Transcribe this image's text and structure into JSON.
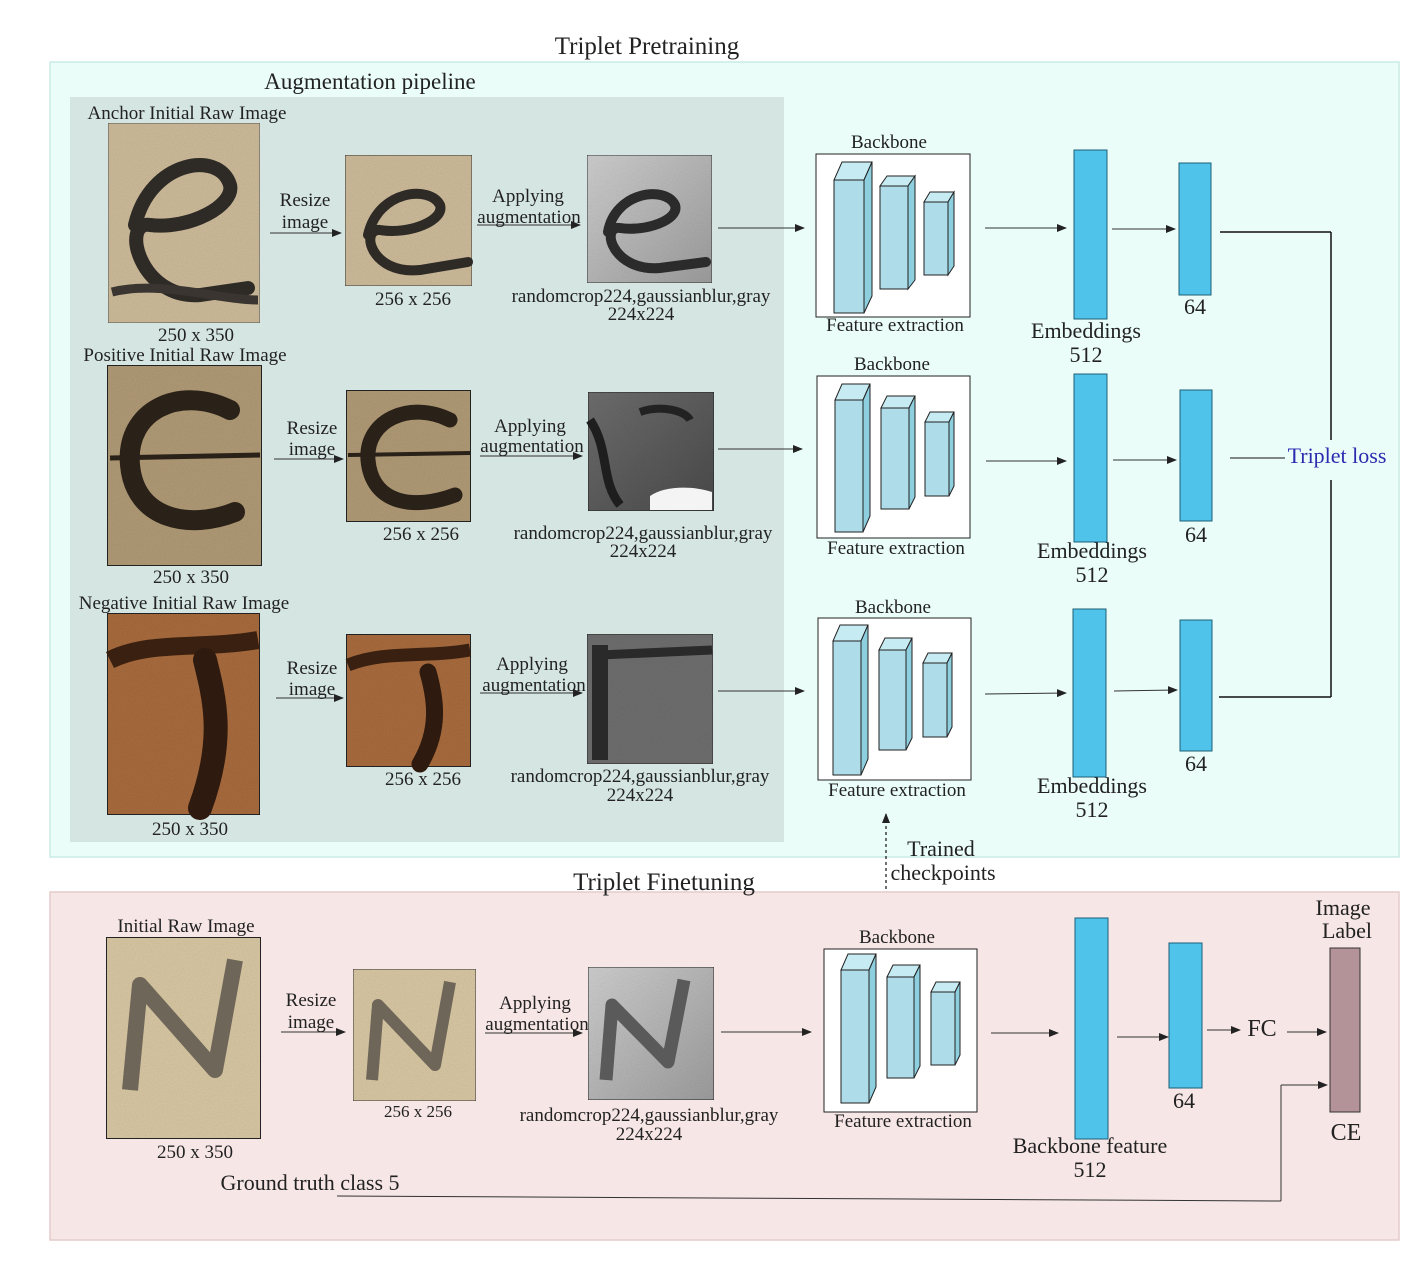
{
  "pretraining": {
    "title": "Triplet Pretraining",
    "pipeline_title": "Augmentation pipeline",
    "rows": [
      {
        "raw_label": "Anchor Initial Raw Image",
        "raw_size": "250 x 350",
        "resize_label_1": "Resize",
        "resize_label_2": "image",
        "resized_size": "256 x 256",
        "augment_label_1": "Applying",
        "augment_label_2": "augmentation",
        "augment_ops": "randomcrop224,gaussianblur,gray",
        "augment_size": "224x224",
        "backbone_title": "Backbone",
        "backbone_caption": "Feature extraction",
        "embedding_label": "Embeddings",
        "embedding_dim": "512",
        "output_dim": "64"
      },
      {
        "raw_label": "Positive Initial Raw Image",
        "raw_size": "250 x 350",
        "resize_label_1": "Resize",
        "resize_label_2": "image",
        "resized_size": "256 x 256",
        "augment_label_1": "Applying",
        "augment_label_2": "augmentation",
        "augment_ops": "randomcrop224,gaussianblur,gray",
        "augment_size": "224x224",
        "backbone_title": "Backbone",
        "backbone_caption": "Feature extraction",
        "embedding_label": "Embeddings",
        "embedding_dim": "512",
        "output_dim": "64"
      },
      {
        "raw_label": "Negative Initial Raw Image",
        "raw_size": "250 x 350",
        "resize_label_1": "Resize",
        "resize_label_2": "image",
        "resized_size": "256 x 256",
        "augment_label_1": "Applying",
        "augment_label_2": "augmentation",
        "augment_ops": "randomcrop224,gaussianblur,gray",
        "augment_size": "224x224",
        "backbone_title": "Backbone",
        "backbone_caption": "Feature extraction",
        "embedding_label": "Embeddings",
        "embedding_dim": "512",
        "output_dim": "64"
      }
    ],
    "loss_label": "Triplet loss"
  },
  "transfer": {
    "label_1": "Trained",
    "label_2": "checkpoints"
  },
  "finetuning": {
    "title": "Triplet Finetuning",
    "raw_label": "Initial Raw Image",
    "raw_size": "250 x 350",
    "resize_label_1": "Resize",
    "resize_label_2": "image",
    "resized_size": "256 x 256",
    "augment_label_1": "Applying",
    "augment_label_2": "augmentation",
    "augment_ops": "randomcrop224,gaussianblur,gray",
    "augment_size": "224x224",
    "backbone_title": "Backbone",
    "backbone_caption": "Feature extraction",
    "feature_label": "Backbone feature",
    "feature_dim": "512",
    "output_dim": "64",
    "fc_label": "FC",
    "image_label_1": "Image",
    "image_label_2": "Label",
    "loss_label": "CE",
    "ground_truth": "Ground truth class 5"
  },
  "colors": {
    "pretrain_bg": "#eafdf8",
    "pipeline_bg": "#d5e6e2",
    "finetune_bg": "#f7e6e6",
    "embedding_blue": "#4fc3ea",
    "block_light_blue": "#aedce8",
    "label_bar": "#b39398",
    "triplet_loss_text": "#2b2bb0"
  },
  "icons": {
    "anchor_glyph": "e",
    "positive_glyph": "e",
    "negative_glyph": "T",
    "finetune_glyph": "N"
  }
}
